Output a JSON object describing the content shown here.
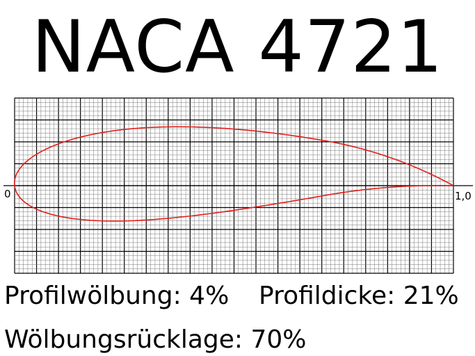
{
  "title": "NACA 4721",
  "labels": {
    "camber": "Profilwölbung: 4%",
    "thickness": "Profildicke: 21%",
    "camber_position": "Wölbungsrücklage: 70%"
  },
  "chart_data": {
    "type": "line",
    "profile": "NACA 4721",
    "max_camber": 0.04,
    "camber_position": 0.7,
    "thickness": 0.21,
    "x_tick_labels": [
      "0",
      "1,0"
    ],
    "xlim": [
      0,
      1.0
    ],
    "ylim": [
      -0.2,
      0.2
    ],
    "grid": true,
    "colors": {
      "profile": "#e0201b",
      "grid": "#000000"
    }
  }
}
